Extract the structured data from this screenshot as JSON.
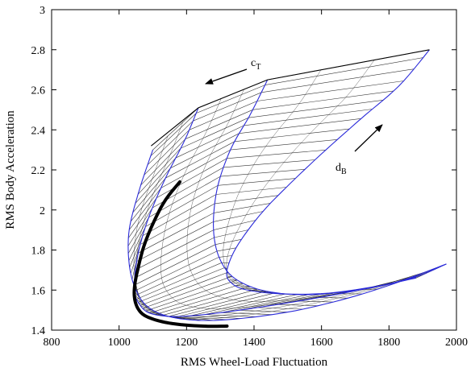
{
  "chart_data": {
    "type": "line",
    "title": "",
    "xlabel": "RMS Wheel-Load Fluctuation",
    "ylabel": "RMS Body Acceleration",
    "xlim": [
      800,
      2000
    ],
    "ylim": [
      1.4,
      3.0
    ],
    "xticks": [
      "800",
      "1000",
      "1200",
      "1400",
      "1600",
      "1800",
      "2000"
    ],
    "yticks": [
      "1.4",
      "1.6",
      "1.8",
      "2",
      "2.2",
      "2.4",
      "2.6",
      "2.8",
      "3"
    ],
    "grid": false,
    "annotations": [
      {
        "text": "c",
        "subscript": "T"
      },
      {
        "text": "d",
        "subscript": "B"
      }
    ],
    "series": [
      {
        "role": "envelope-blue",
        "color": "#2b2bd9",
        "curves": [
          {
            "x": [
              1100,
              1060,
              1030,
              1030,
              1050,
              1090,
              1170,
              1300,
              1500,
              1700,
              1880
            ],
            "y": [
              2.3,
              2.1,
              1.9,
              1.73,
              1.6,
              1.51,
              1.46,
              1.45,
              1.49,
              1.57,
              1.67
            ]
          },
          {
            "x": [
              1235,
              1195,
              1135,
              1085,
              1055,
              1045,
              1060,
              1100,
              1200,
              1400,
              1650,
              1880
            ],
            "y": [
              2.51,
              2.35,
              2.15,
              1.95,
              1.77,
              1.61,
              1.53,
              1.48,
              1.47,
              1.51,
              1.58,
              1.66
            ]
          },
          {
            "x": [
              1440,
              1390,
              1330,
              1290,
              1280,
              1300,
              1350,
              1450,
              1600,
              1800,
              1970
            ],
            "y": [
              2.65,
              2.48,
              2.3,
              2.1,
              1.9,
              1.75,
              1.65,
              1.59,
              1.58,
              1.63,
              1.73
            ]
          },
          {
            "x": [
              1920,
              1830,
              1720,
              1600,
              1500,
              1420,
              1350,
              1320,
              1330,
              1380,
              1500,
              1650,
              1850,
              1970
            ],
            "y": [
              2.8,
              2.62,
              2.46,
              2.28,
              2.12,
              1.98,
              1.82,
              1.7,
              1.64,
              1.6,
              1.58,
              1.59,
              1.65,
              1.73
            ]
          }
        ]
      },
      {
        "role": "optimal-locus",
        "color": "#000000",
        "x": [
          1180,
          1130,
          1080,
          1055,
          1045,
          1050,
          1070,
          1110,
          1170,
          1250,
          1320
        ],
        "y": [
          2.14,
          2.03,
          1.85,
          1.7,
          1.6,
          1.53,
          1.48,
          1.45,
          1.43,
          1.42,
          1.42
        ]
      },
      {
        "role": "outer-frame",
        "color": "#000000",
        "x": [
          1095,
          1235,
          1440,
          1920
        ],
        "y": [
          2.32,
          2.51,
          2.65,
          2.8
        ]
      }
    ]
  }
}
